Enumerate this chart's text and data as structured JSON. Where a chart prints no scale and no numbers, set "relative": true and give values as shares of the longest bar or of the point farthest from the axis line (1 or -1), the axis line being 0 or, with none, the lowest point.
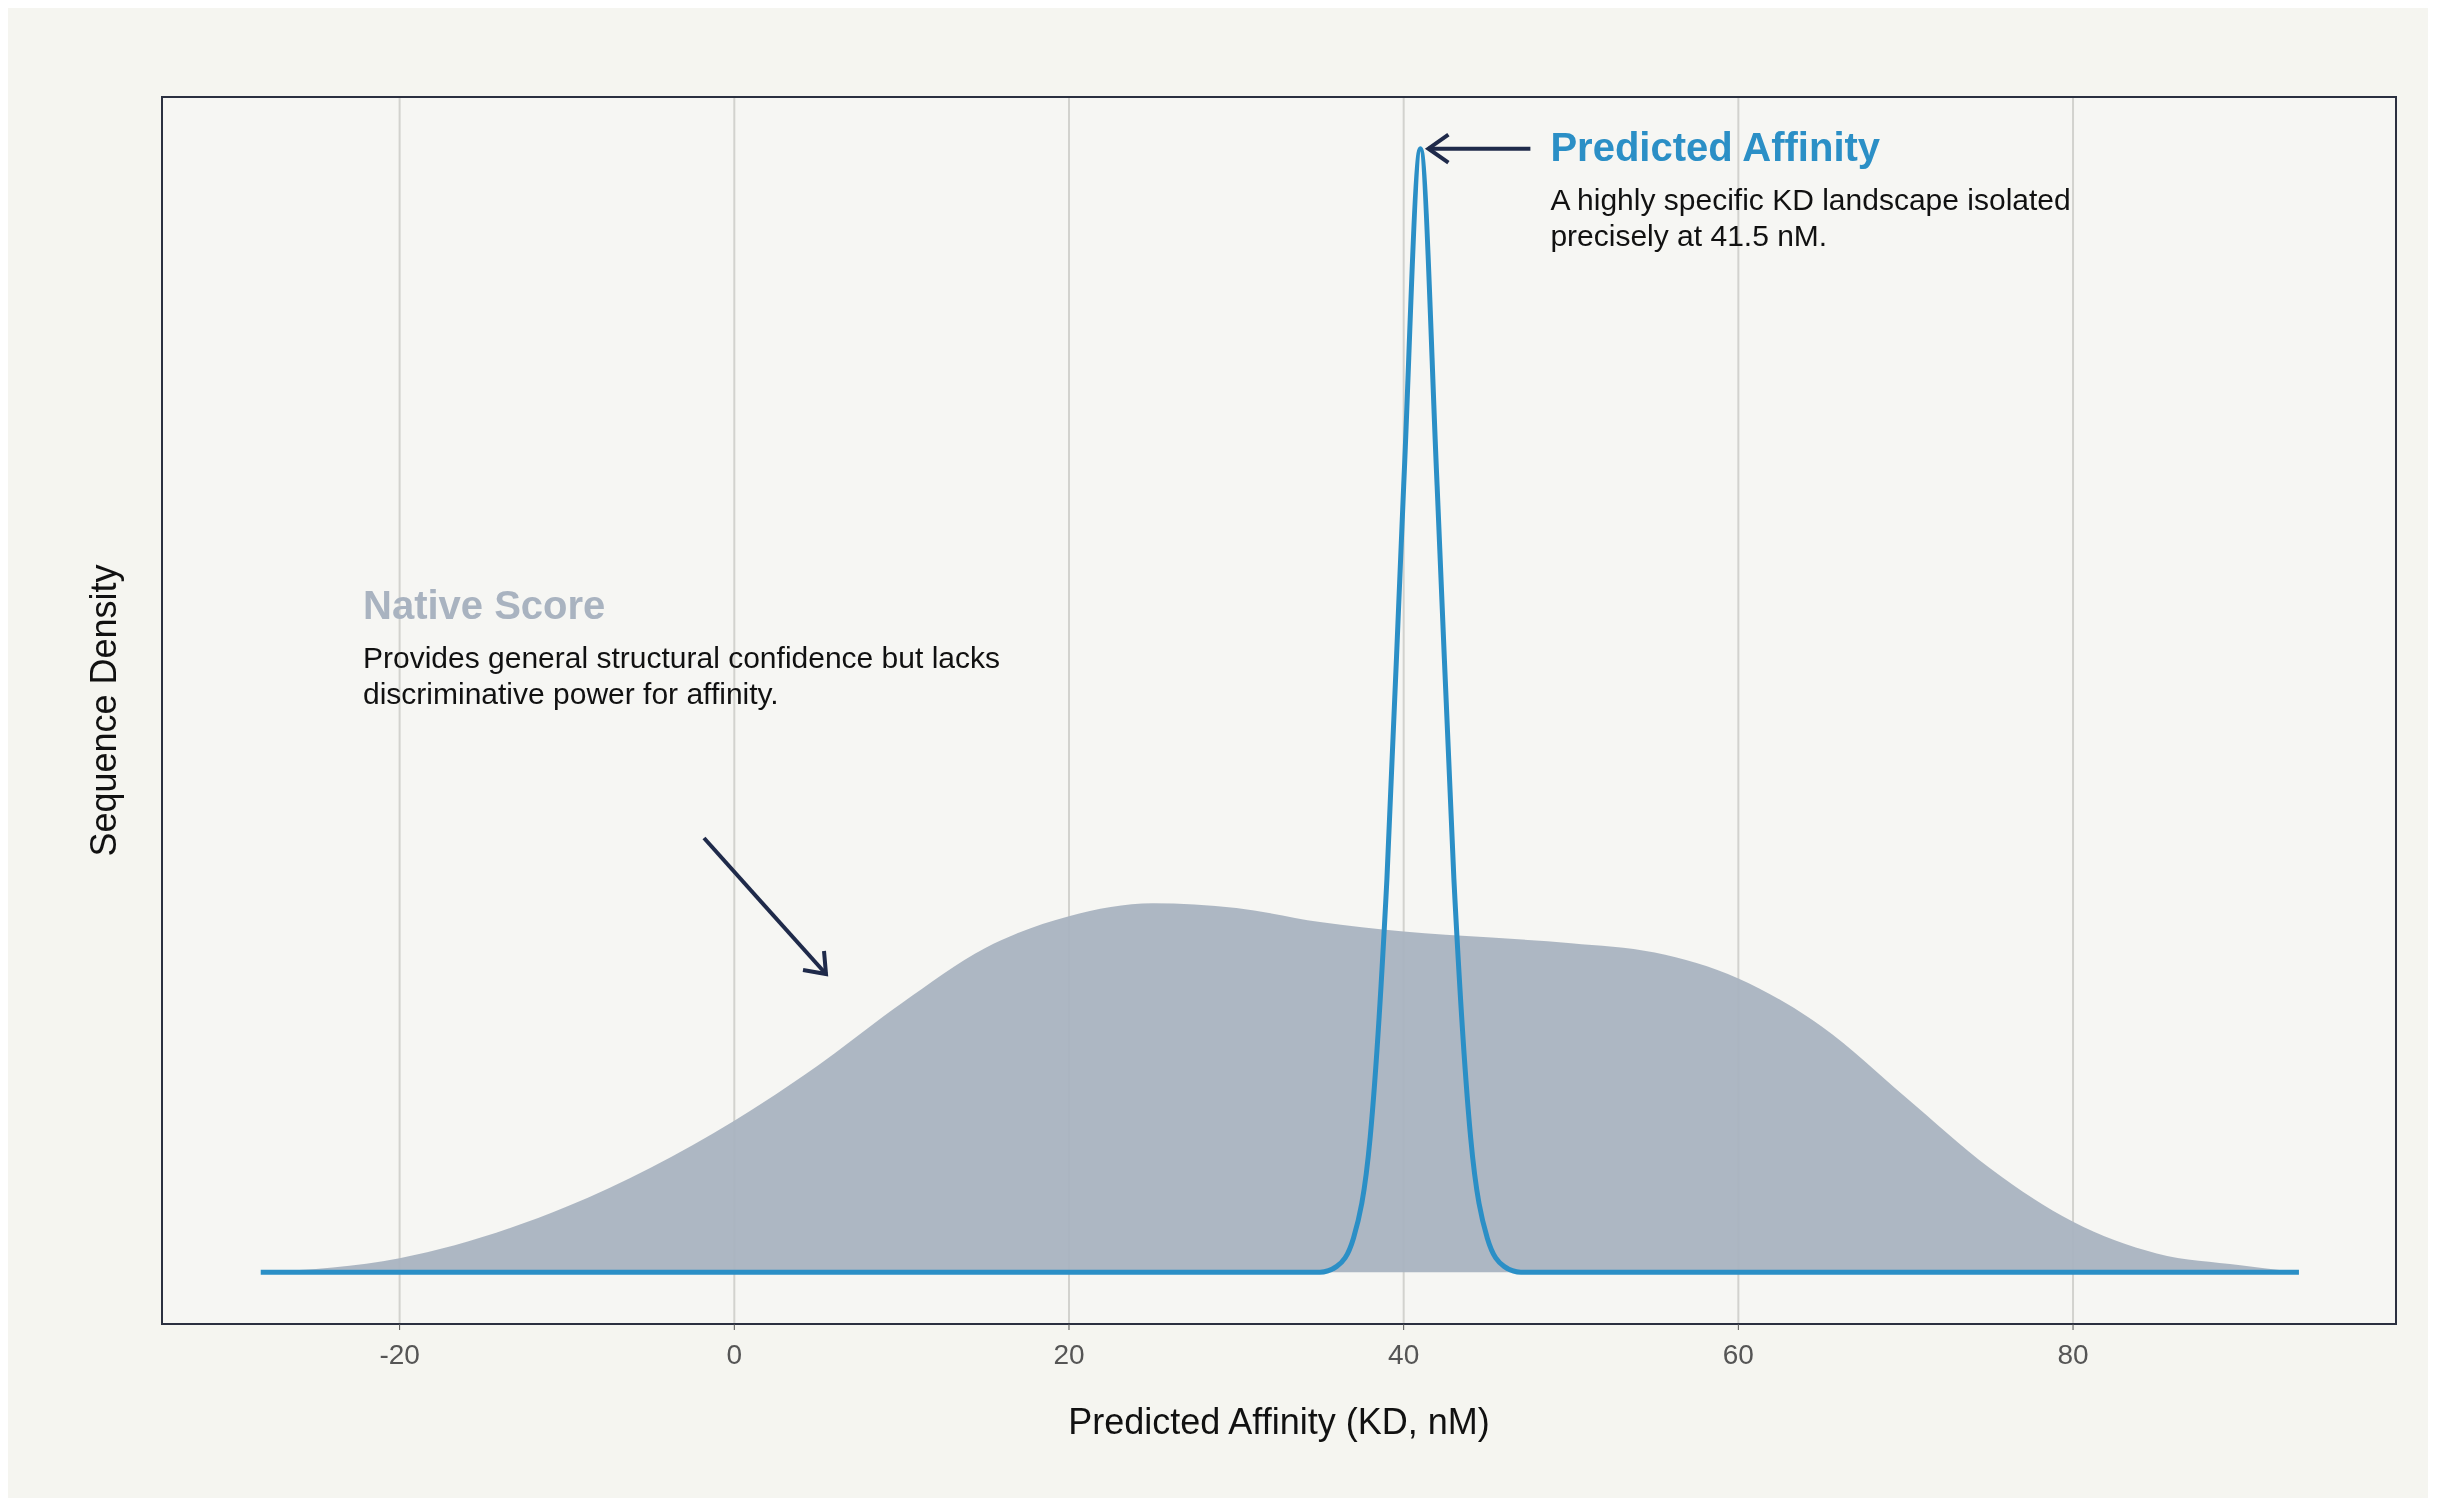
{
  "chart_data": {
    "type": "area",
    "xlabel": "Predicted Affinity (KD, nM)",
    "ylabel": "Sequence Density",
    "relative": true,
    "xlim": [
      -34.2,
      99.3
    ],
    "xticks": [
      -20,
      0,
      20,
      40,
      60,
      80
    ],
    "grid": "x",
    "marker": "none",
    "line_style": "solid",
    "series": [
      {
        "name": "Native Score",
        "color": "#a9b3c0",
        "x": [
          -28.3,
          -20,
          -10,
          0,
          5,
          10,
          15,
          20,
          25,
          30,
          35,
          40,
          45,
          50,
          55,
          60,
          65,
          70,
          75,
          80,
          85,
          90,
          93.5
        ],
        "values": [
          0.044,
          0.056,
          0.1,
          0.173,
          0.22,
          0.273,
          0.32,
          0.347,
          0.358,
          0.354,
          0.342,
          0.334,
          0.329,
          0.324,
          0.316,
          0.294,
          0.253,
          0.193,
          0.133,
          0.087,
          0.06,
          0.05,
          0.044
        ]
      },
      {
        "name": "Predicted Affinity",
        "type": "line",
        "color": "#2b8fc6",
        "x": [
          -28.3,
          35,
          36,
          37,
          38,
          39,
          40,
          41,
          42,
          43,
          44,
          45,
          46,
          47,
          48,
          93.5
        ],
        "values": [
          0.044,
          0.044,
          0.049,
          0.073,
          0.159,
          0.379,
          0.713,
          1,
          0.713,
          0.379,
          0.159,
          0.073,
          0.049,
          0.044,
          0.044,
          0.044
        ]
      }
    ],
    "annotations": [
      "A highly specific KD landscape isolated precisely at 41.5 nM.",
      "Provides general structural confidence but lacks discriminative power for affinity."
    ]
  }
}
